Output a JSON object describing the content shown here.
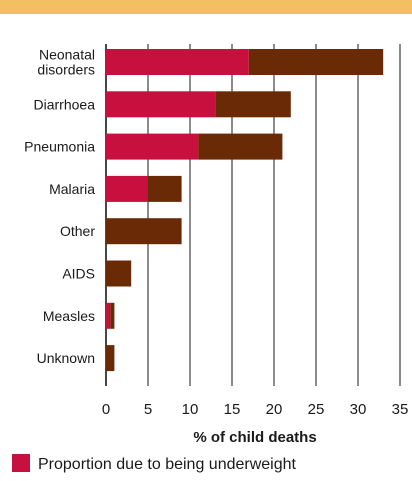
{
  "colors": {
    "band": "#f2c062",
    "underweight": "#c8103e",
    "other": "#6b2a06",
    "grid": "#1a1a1a"
  },
  "chart_data": {
    "type": "bar",
    "orientation": "horizontal",
    "stacked": true,
    "categories": [
      [
        "Neonatal",
        "disorders"
      ],
      [
        "Diarrhoea"
      ],
      [
        "Pneumonia"
      ],
      [
        "Malaria"
      ],
      [
        "Other"
      ],
      [
        "AIDS"
      ],
      [
        "Measles"
      ],
      [
        "Unknown"
      ]
    ],
    "series": [
      {
        "name": "Proportion due to being underweight",
        "values": [
          17,
          13,
          11,
          5,
          0,
          0,
          0.5,
          0
        ]
      },
      {
        "values": [
          16,
          9,
          10,
          4,
          9,
          3,
          0.5,
          1
        ]
      }
    ],
    "xlim": [
      0,
      35
    ],
    "xticks": [
      0,
      5,
      10,
      15,
      20,
      25,
      30,
      35
    ],
    "xlabel": "% of child deaths",
    "grid": "vertical",
    "legend": "bottom-left"
  }
}
